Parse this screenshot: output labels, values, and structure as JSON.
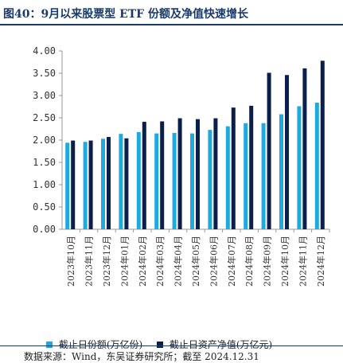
{
  "header": {
    "title": "图40：9月以来股票型 ETF 份额及净值快速增长"
  },
  "footer": {
    "source": "数据来源：Wind，东吴证券研究所；截至 2024.12.31"
  },
  "colors": {
    "series1": "#1fa9e1",
    "series2": "#0b1f4d",
    "title": "#1a3a6b"
  },
  "chart_data": {
    "type": "bar",
    "title": "",
    "xlabel": "",
    "ylabel": "",
    "ylim": [
      0,
      4.0
    ],
    "yticks": [
      "0.00",
      "0.50",
      "1.00",
      "1.50",
      "2.00",
      "2.50",
      "3.00",
      "3.50",
      "4.00"
    ],
    "grid": false,
    "legend_position": "bottom",
    "categories": [
      "2023年10月",
      "2023年11月",
      "2023年12月",
      "2024年01月",
      "2024年02月",
      "2024年03月",
      "2024年04月",
      "2024年05月",
      "2024年06月",
      "2024年07月",
      "2024年08月",
      "2024年09月",
      "2024年10月",
      "2024年11月",
      "2024年12月"
    ],
    "series": [
      {
        "name": "截止日份额(万亿份)",
        "color": "#1fa9e1",
        "values": [
          1.94,
          1.96,
          2.03,
          2.14,
          2.18,
          2.15,
          2.16,
          2.15,
          2.23,
          2.31,
          2.38,
          2.38,
          2.58,
          2.76,
          2.84
        ]
      },
      {
        "name": "截止日资产净值(万亿元)",
        "color": "#0b1f4d",
        "values": [
          1.99,
          1.99,
          2.07,
          2.04,
          2.41,
          2.42,
          2.49,
          2.47,
          2.49,
          2.73,
          2.77,
          3.51,
          3.46,
          3.61,
          3.78
        ]
      }
    ]
  }
}
